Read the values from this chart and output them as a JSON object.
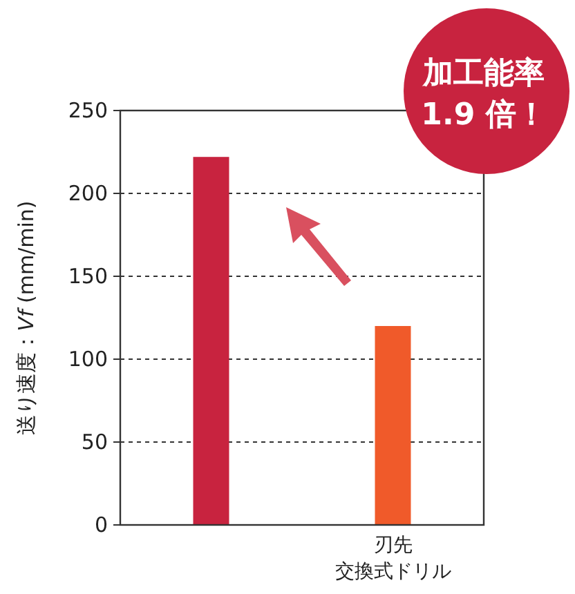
{
  "chart_data": {
    "type": "bar",
    "ylabel": "送り速度：*Vf* (mm/min)",
    "categories": [
      null,
      "刃先交換式ドリル"
    ],
    "values": [
      222,
      120
    ],
    "colors": [
      "#c8233f",
      "#f05a2a"
    ],
    "ylim": [
      0,
      250
    ],
    "yticks": [
      0,
      50,
      100,
      150,
      200,
      250
    ],
    "grid": "y",
    "annotations": [
      "加工能率",
      "1.9 倍！"
    ]
  }
}
